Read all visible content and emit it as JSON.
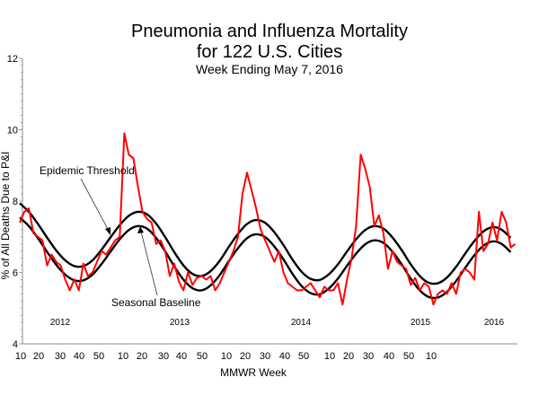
{
  "chart_data": {
    "type": "line",
    "title": "Pneumonia and Influenza Mortality",
    "title_line2": "for 122 U.S. Cities",
    "subtitle": "Week Ending May 7, 2016",
    "xlabel": "MMWR Week",
    "ylabel": "% of All Deaths Due to P&I",
    "ylim": [
      4,
      12
    ],
    "yticks": [
      "4",
      "6",
      "8",
      "10",
      "12"
    ],
    "xtick_labels": [
      "10",
      "20",
      "30",
      "40",
      "50",
      "10",
      "20",
      "30",
      "40",
      "50",
      "10",
      "20",
      "30",
      "40",
      "50",
      "10",
      "20",
      "30",
      "40",
      "50",
      "10"
    ],
    "year_labels": [
      "2012",
      "2013",
      "2014",
      "2015",
      "2016"
    ],
    "x_start": "2012 week 10",
    "x_end": "2016 week 18",
    "grid": false,
    "annotations": [
      "Epidemic Threshold",
      "Seasonal Baseline"
    ],
    "series": [
      {
        "name": "P&I mortality",
        "color": "#ff0000",
        "interval_weeks": 2,
        "values": [
          7.4,
          7.7,
          7.8,
          7.1,
          7.0,
          6.9,
          6.2,
          6.5,
          6.3,
          6.2,
          5.8,
          5.5,
          5.8,
          5.5,
          6.25,
          5.9,
          6.0,
          6.3,
          6.6,
          6.5,
          6.7,
          6.9,
          7.0,
          9.9,
          9.3,
          9.2,
          8.4,
          7.7,
          7.5,
          7.4,
          6.8,
          6.9,
          6.6,
          5.9,
          6.25,
          5.75,
          5.5,
          6.0,
          5.65,
          5.85,
          5.9,
          5.8,
          5.9,
          5.5,
          5.7,
          6.0,
          6.3,
          6.6,
          7.0,
          8.2,
          8.8,
          8.3,
          7.8,
          7.2,
          6.9,
          6.6,
          6.3,
          6.6,
          6.0,
          5.7,
          5.6,
          5.5,
          5.5,
          5.6,
          5.7,
          5.5,
          5.3,
          5.6,
          5.5,
          5.5,
          5.7,
          5.1,
          5.8,
          6.4,
          7.3,
          9.3,
          8.9,
          8.4,
          7.3,
          7.6,
          7.1,
          6.1,
          6.6,
          6.3,
          6.2,
          6.1,
          5.65,
          5.85,
          5.5,
          5.7,
          5.6,
          5.1,
          5.4,
          5.5,
          5.4,
          5.7,
          5.4,
          6.0,
          6.1,
          6.0,
          5.8,
          7.7,
          6.6,
          6.8,
          7.4,
          6.9,
          7.7,
          7.4,
          6.7,
          6.8
        ]
      },
      {
        "name": "Epidemic Threshold",
        "color": "#000000",
        "interval_weeks": 4,
        "values": [
          7.94,
          7.7,
          7.36,
          6.98,
          6.62,
          6.34,
          6.18,
          6.18,
          6.34,
          6.64,
          6.99,
          7.33,
          7.59,
          7.7,
          7.63,
          7.37,
          6.99,
          6.57,
          6.2,
          5.96,
          5.9,
          6.04,
          6.33,
          6.72,
          7.08,
          7.36,
          7.47,
          7.39,
          7.13,
          6.77,
          6.36,
          6.02,
          5.82,
          5.79,
          5.95,
          6.23,
          6.59,
          6.93,
          7.19,
          7.3,
          7.23,
          6.98,
          6.63,
          6.23,
          5.9,
          5.71,
          5.7,
          5.86,
          6.16,
          6.53,
          6.88,
          7.15,
          7.27,
          7.2,
          6.97
        ]
      },
      {
        "name": "Seasonal Baseline",
        "color": "#000000",
        "interval_weeks": 4,
        "values": [
          7.54,
          7.3,
          6.96,
          6.58,
          6.22,
          5.94,
          5.78,
          5.78,
          5.94,
          6.24,
          6.59,
          6.93,
          7.19,
          7.3,
          7.23,
          6.97,
          6.59,
          6.17,
          5.8,
          5.56,
          5.5,
          5.64,
          5.93,
          6.32,
          6.68,
          6.96,
          7.07,
          6.99,
          6.73,
          6.37,
          5.96,
          5.62,
          5.42,
          5.39,
          5.55,
          5.83,
          6.19,
          6.53,
          6.79,
          6.9,
          6.83,
          6.58,
          6.23,
          5.83,
          5.5,
          5.31,
          5.3,
          5.46,
          5.76,
          6.13,
          6.48,
          6.75,
          6.87,
          6.8,
          6.57
        ]
      }
    ]
  }
}
